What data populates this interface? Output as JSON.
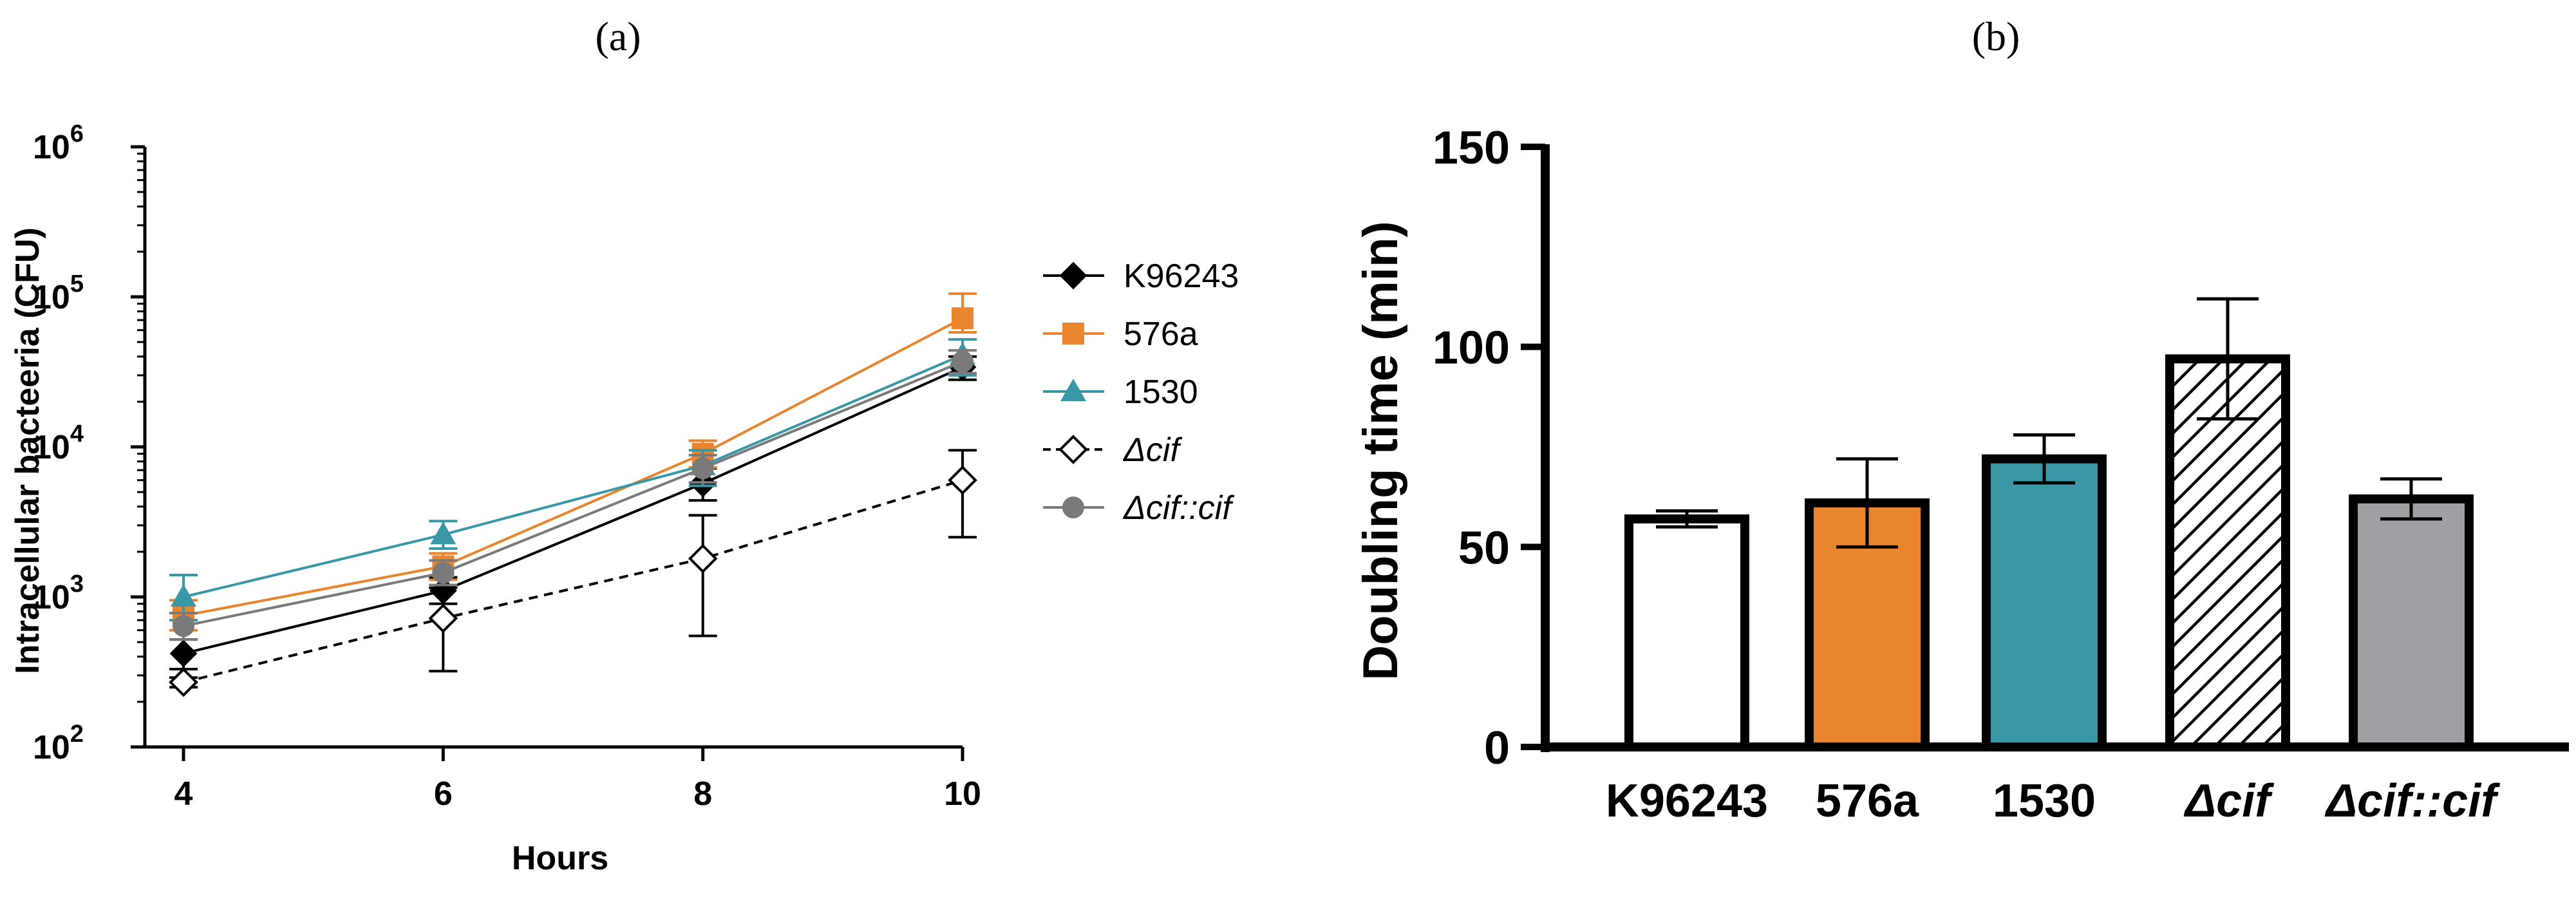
{
  "panels": {
    "a": "(a)",
    "b": "(b)"
  },
  "chart_data": [
    {
      "id": "a",
      "type": "line",
      "title": "",
      "xlabel": "Hours",
      "ylabel": "Intracellular bacteeria (CFU)",
      "yscale": "log",
      "ylim": [
        100,
        1000000
      ],
      "xlim": [
        4,
        10
      ],
      "x": [
        4,
        6,
        8,
        10
      ],
      "x_ticks": [
        "4",
        "6",
        "8",
        "10"
      ],
      "y_ticks": [
        {
          "value": 100,
          "base": "10",
          "exp": "2"
        },
        {
          "value": 1000,
          "base": "10",
          "exp": "3"
        },
        {
          "value": 10000,
          "base": "10",
          "exp": "4"
        },
        {
          "value": 100000,
          "base": "10",
          "exp": "5"
        },
        {
          "value": 1000000,
          "base": "10",
          "exp": "6"
        }
      ],
      "legend_position": "right",
      "series": [
        {
          "name": "K96243",
          "italic": false,
          "color": "#000000",
          "marker": "diamond-filled",
          "dash": "solid",
          "values": [
            420,
            1100,
            5700,
            34000
          ],
          "err_low": [
            330,
            900,
            4400,
            28000
          ],
          "err_high": [
            520,
            1350,
            7200,
            40000
          ]
        },
        {
          "name": "576a",
          "italic": false,
          "color": "#E8852E",
          "marker": "square",
          "dash": "solid",
          "values": [
            750,
            1600,
            9000,
            72000
          ],
          "err_low": [
            600,
            1300,
            7300,
            58000
          ],
          "err_high": [
            950,
            1950,
            11000,
            105000
          ]
        },
        {
          "name": "1530",
          "italic": false,
          "color": "#3A97A6",
          "marker": "triangle",
          "dash": "solid",
          "values": [
            1000,
            2600,
            7500,
            41000
          ],
          "err_low": [
            700,
            2100,
            5500,
            30000
          ],
          "err_high": [
            1400,
            3200,
            9500,
            52000
          ]
        },
        {
          "name": "Δcif",
          "italic": true,
          "color": "#000000",
          "marker": "diamond-open",
          "dash": "dashed",
          "values": [
            270,
            720,
            1800,
            6000
          ],
          "err_low": [
            250,
            320,
            550,
            2500
          ],
          "err_high": [
            290,
            1150,
            3500,
            9500
          ]
        },
        {
          "name": "Δcif::cif",
          "italic": true,
          "color": "#7a7a7a",
          "marker": "circle",
          "dash": "solid",
          "values": [
            640,
            1450,
            7200,
            37000
          ],
          "err_low": [
            520,
            1200,
            5800,
            31000
          ],
          "err_high": [
            780,
            1750,
            8800,
            44000
          ]
        }
      ]
    },
    {
      "id": "b",
      "type": "bar",
      "title": "",
      "xlabel": "",
      "ylabel": "Doubling time (min)",
      "ylim": [
        0,
        150
      ],
      "y_ticks": [
        "0",
        "50",
        "100",
        "150"
      ],
      "y_tick_values": [
        0,
        50,
        100,
        150
      ],
      "categories": [
        "K96243",
        "576a",
        "1530",
        "Δcif",
        "Δcif::cif"
      ],
      "category_italic": [
        false,
        false,
        false,
        true,
        true
      ],
      "values": [
        57,
        61,
        72,
        97,
        62
      ],
      "errors": [
        2,
        11,
        6,
        15,
        5
      ],
      "fills": [
        "#ffffff",
        "#E8852E",
        "#3A97A6",
        "hatch",
        "#A0A0A4"
      ]
    }
  ]
}
